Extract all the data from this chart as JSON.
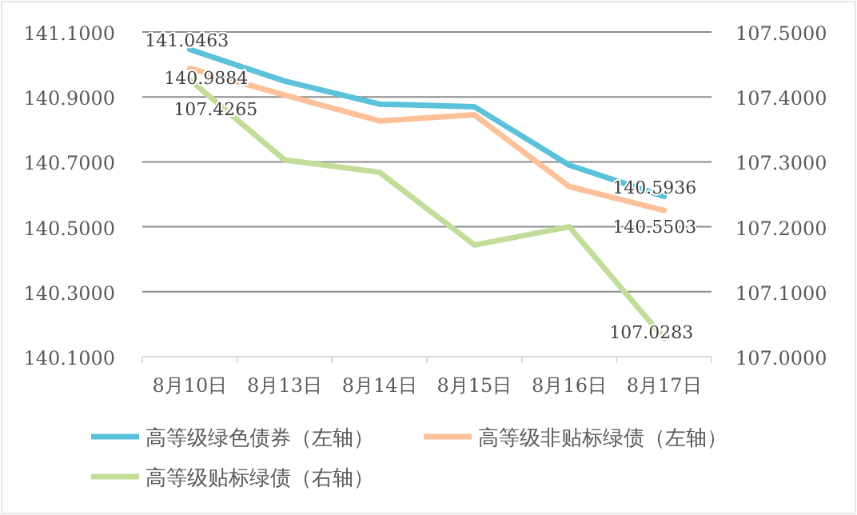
{
  "chart_data": {
    "type": "line",
    "categories": [
      "8月10日",
      "8月13日",
      "8月14日",
      "8月15日",
      "8月16日",
      "8月17日"
    ],
    "series": [
      {
        "name": "高等级绿色债券（左轴）",
        "color": "#5bc2d9",
        "values": [
          141.0463,
          140.949,
          140.878,
          140.87,
          140.69,
          140.5936
        ],
        "value_labels": [
          "141.0463",
          null,
          null,
          null,
          null,
          "140.5936"
        ]
      },
      {
        "name": "高等级非贴标绿债（左轴）",
        "color": "#fdc19a",
        "values": [
          140.9884,
          140.906,
          140.826,
          140.845,
          140.624,
          140.5503
        ],
        "value_labels": [
          "140.9884",
          null,
          null,
          null,
          null,
          "140.5503"
        ]
      },
      {
        "name": "高等级贴标绿债（右轴）",
        "color": "#c2dd9a",
        "axis": "y2",
        "values": [
          107.4265,
          107.303,
          107.284,
          107.172,
          107.2,
          107.0283
        ],
        "value_labels": [
          "107.4265",
          null,
          null,
          null,
          null,
          "107.0283"
        ]
      }
    ],
    "ylim": [
      140.1,
      141.1
    ],
    "yticks": [
      {
        "value": 140.1,
        "label": "140.1000"
      },
      {
        "value": 140.3,
        "label": "140.3000"
      },
      {
        "value": 140.5,
        "label": "140.5000"
      },
      {
        "value": 140.7,
        "label": "140.7000"
      },
      {
        "value": 140.9,
        "label": "140.9000"
      },
      {
        "value": 141.1,
        "label": "141.1000"
      }
    ],
    "y2lim": [
      107.0,
      107.5
    ],
    "y2ticks": [
      {
        "value": 107.0,
        "label": "107.0000"
      },
      {
        "value": 107.1,
        "label": "107.1000"
      },
      {
        "value": 107.2,
        "label": "107.2000"
      },
      {
        "value": 107.3,
        "label": "107.3000"
      },
      {
        "value": 107.4,
        "label": "107.4000"
      },
      {
        "value": 107.5,
        "label": "107.5000"
      }
    ],
    "grid": "y",
    "legend": "bottom",
    "marker": "none",
    "line_style": "solid"
  }
}
